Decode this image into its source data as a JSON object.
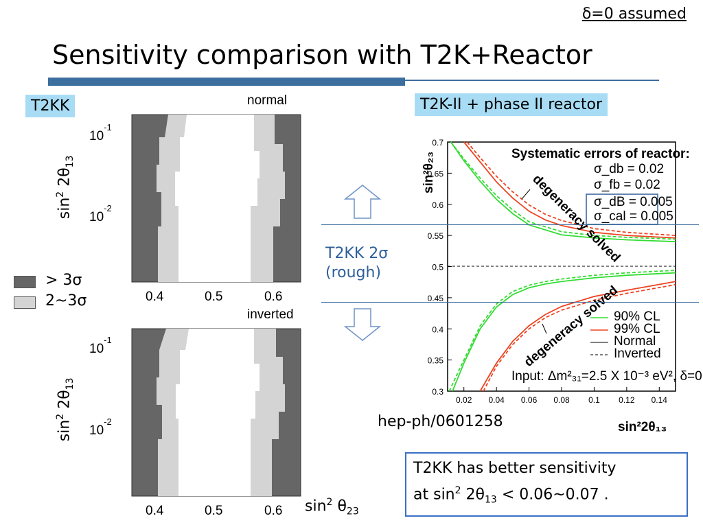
{
  "header": {
    "assumption": "δ=0 assumed",
    "title": "Sensitivity comparison with T2K+Reactor"
  },
  "left": {
    "tag": "T2KK",
    "panels": [
      {
        "label": "normal"
      },
      {
        "label": "inverted"
      }
    ],
    "ylabel_base": "sin",
    "ylabel_exp": "2",
    "ylabel_mid": " 2θ",
    "ylabel_sub": "13",
    "yticks": [
      {
        "base": "10",
        "exp": "-1"
      },
      {
        "base": "10",
        "exp": "-2"
      }
    ],
    "xticks": [
      "0.4",
      "0.5",
      "0.6"
    ],
    "xlabel_base": "sin",
    "xlabel_exp": "2",
    "xlabel_mid": " θ",
    "xlabel_sub": "23",
    "legend": [
      {
        "label": "> 3σ",
        "color": "#666666"
      },
      {
        "label": "2~3σ",
        "color": "#d4d4d4"
      }
    ]
  },
  "right": {
    "tag": "T2K-II + phase II reactor",
    "t2kk_line1": "T2KK 2σ",
    "t2kk_line2": "(rough)",
    "source": "hep-ph/0601258",
    "ylabel": "sin²θ₂₃",
    "xlabel": "sin²2θ₁₃",
    "yticks": [
      "0.7",
      "0.65",
      "0.6",
      "0.55",
      "0.5",
      "0.45",
      "0.4",
      "0.35",
      "0.3"
    ],
    "xticks": [
      "0.02",
      "0.04",
      "0.06",
      "0.08",
      "0.1",
      "0.12",
      "0.14"
    ],
    "syst_title": "Systematic errors of reactor:",
    "syst": [
      "σ_db = 0.02",
      "σ_fb = 0.02",
      "σ_dB = 0.005",
      "σ_cal = 0.005"
    ],
    "annotation_top": "degeneracy solved",
    "annotation_bottom": "degeneracy solved",
    "legend": [
      "90% CL",
      "99% CL",
      "Normal",
      "Inverted"
    ],
    "input_text": "Input: Δm²₃₁=2.5 X 10⁻³ eV², δ=0",
    "colors": {
      "cl90": "#33dd33",
      "cl99": "#ee4422"
    }
  },
  "conclusion": {
    "line1": "T2KK has better sensitivity",
    "line2_pre": "at sin",
    "line2_exp": "2",
    "line2_mid": " 2θ",
    "line2_sub": "13",
    "line2_post": " < 0.06~0.07 ."
  },
  "chart_data": [
    {
      "type": "line",
      "xlabel": "sin²2θ₁₃",
      "ylabel": "sin²θ₂₃",
      "xlim": [
        0.01,
        0.15
      ],
      "ylim": [
        0.3,
        0.7
      ],
      "series": [
        {
          "name": "90% CL",
          "x": [
            0.012,
            0.02,
            0.03,
            0.04,
            0.05,
            0.06,
            0.08,
            0.1,
            0.12,
            0.15
          ],
          "y": [
            0.7,
            0.67,
            0.637,
            0.608,
            0.585,
            0.567,
            0.551,
            0.546,
            0.543,
            0.54
          ]
        },
        {
          "name": "90% CL",
          "x": [
            0.012,
            0.02,
            0.03,
            0.04,
            0.05,
            0.06,
            0.08,
            0.1,
            0.12,
            0.15
          ],
          "y": [
            0.7,
            0.673,
            0.642,
            0.614,
            0.591,
            0.572,
            0.556,
            0.55,
            0.547,
            0.544
          ]
        },
        {
          "name": "90% CL",
          "x": [
            0.013,
            0.02,
            0.03,
            0.04,
            0.05,
            0.06,
            0.07,
            0.08,
            0.1,
            0.12,
            0.15
          ],
          "y": [
            0.3,
            0.345,
            0.4,
            0.435,
            0.455,
            0.466,
            0.472,
            0.476,
            0.482,
            0.486,
            0.49
          ]
        },
        {
          "name": "90% CL",
          "x": [
            0.011,
            0.02,
            0.03,
            0.04,
            0.05,
            0.06,
            0.07,
            0.08,
            0.1,
            0.12,
            0.15
          ],
          "y": [
            0.3,
            0.35,
            0.405,
            0.44,
            0.46,
            0.47,
            0.476,
            0.48,
            0.486,
            0.49,
            0.494
          ]
        },
        {
          "name": "99% CL",
          "x": [
            0.02,
            0.03,
            0.04,
            0.05,
            0.06,
            0.07,
            0.08,
            0.1,
            0.12,
            0.15
          ],
          "y": [
            0.7,
            0.668,
            0.636,
            0.61,
            0.589,
            0.575,
            0.566,
            0.555,
            0.55,
            0.546
          ]
        },
        {
          "name": "99% CL",
          "x": [
            0.022,
            0.03,
            0.04,
            0.05,
            0.06,
            0.07,
            0.08,
            0.1,
            0.12,
            0.15
          ],
          "y": [
            0.7,
            0.675,
            0.645,
            0.62,
            0.599,
            0.584,
            0.574,
            0.561,
            0.555,
            0.55
          ]
        },
        {
          "name": "99% CL",
          "x": [
            0.03,
            0.04,
            0.05,
            0.06,
            0.07,
            0.08,
            0.1,
            0.12,
            0.15
          ],
          "y": [
            0.3,
            0.345,
            0.38,
            0.405,
            0.423,
            0.436,
            0.452,
            0.462,
            0.476
          ]
        },
        {
          "name": "99% CL",
          "x": [
            0.032,
            0.04,
            0.05,
            0.06,
            0.07,
            0.08,
            0.1,
            0.12,
            0.15
          ],
          "y": [
            0.3,
            0.34,
            0.375,
            0.4,
            0.418,
            0.43,
            0.446,
            0.457,
            0.471
          ]
        }
      ]
    }
  ]
}
